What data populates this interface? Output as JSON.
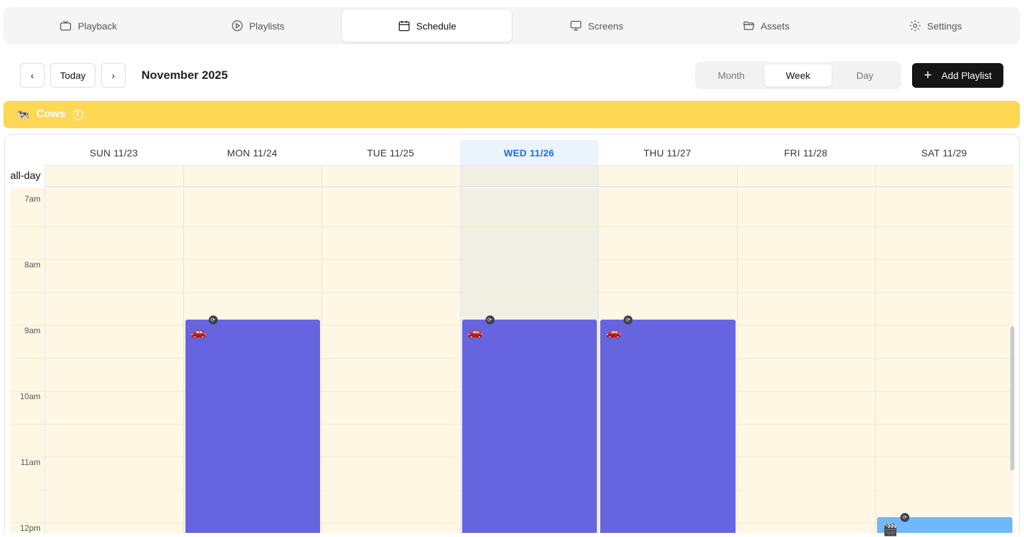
{
  "tabs": [
    {
      "label": "Playback",
      "icon": "tv-icon"
    },
    {
      "label": "Playlists",
      "icon": "play-circle-icon"
    },
    {
      "label": "Schedule",
      "icon": "calendar-icon",
      "active": true
    },
    {
      "label": "Screens",
      "icon": "monitor-icon"
    },
    {
      "label": "Assets",
      "icon": "folder-icon"
    },
    {
      "label": "Settings",
      "icon": "gear-icon"
    }
  ],
  "toolbar": {
    "prev": "‹",
    "today": "Today",
    "next": "›",
    "title": "November 2025",
    "views": [
      "Month",
      "Week",
      "Day"
    ],
    "active_view": "Week",
    "add_icon": "+",
    "add_label": "Add Playlist"
  },
  "banner": {
    "emoji": "🐄",
    "label": "Cows",
    "color": "#fed755"
  },
  "calendar": {
    "allday_label": "all-day",
    "days": [
      "SUN 11/23",
      "MON 11/24",
      "TUE 11/25",
      "WED 11/26",
      "THU 11/27",
      "FRI 11/28",
      "SAT 11/29"
    ],
    "today_index": 3,
    "times": [
      "7am",
      "8am",
      "9am",
      "10am",
      "11am",
      "12pm"
    ],
    "events": [
      {
        "day": 1,
        "start": "9am",
        "emoji": "🚗",
        "color": "#6764e0",
        "repeat": true
      },
      {
        "day": 3,
        "start": "9am",
        "emoji": "🚗",
        "color": "#6764e0",
        "repeat": true
      },
      {
        "day": 4,
        "start": "9am",
        "emoji": "🚗",
        "color": "#6764e0",
        "repeat": true
      },
      {
        "day": 6,
        "start": "12pm",
        "emoji": "🎬",
        "color": "#6fb8fb",
        "repeat": true
      }
    ]
  }
}
